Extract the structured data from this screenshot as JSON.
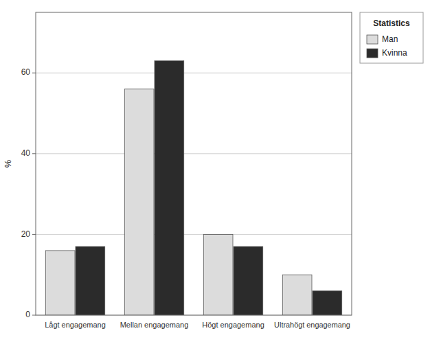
{
  "chart_data": {
    "type": "bar",
    "categories": [
      "Lågt engagemang",
      "Mellan engagemang",
      "Högt engagemang",
      "Ultrahögt engagemang"
    ],
    "series": [
      {
        "name": "Man",
        "color": "#dcdcdc",
        "values": [
          16,
          56,
          20,
          10
        ]
      },
      {
        "name": "Kvinna",
        "color": "#2b2b2b",
        "values": [
          17,
          63,
          17,
          6
        ]
      }
    ],
    "ylabel": "%",
    "legend_title": "Statistics",
    "ylim": [
      0,
      75
    ],
    "yticks": [
      0,
      20,
      40,
      60
    ],
    "grid": true,
    "legend": "upper right"
  }
}
